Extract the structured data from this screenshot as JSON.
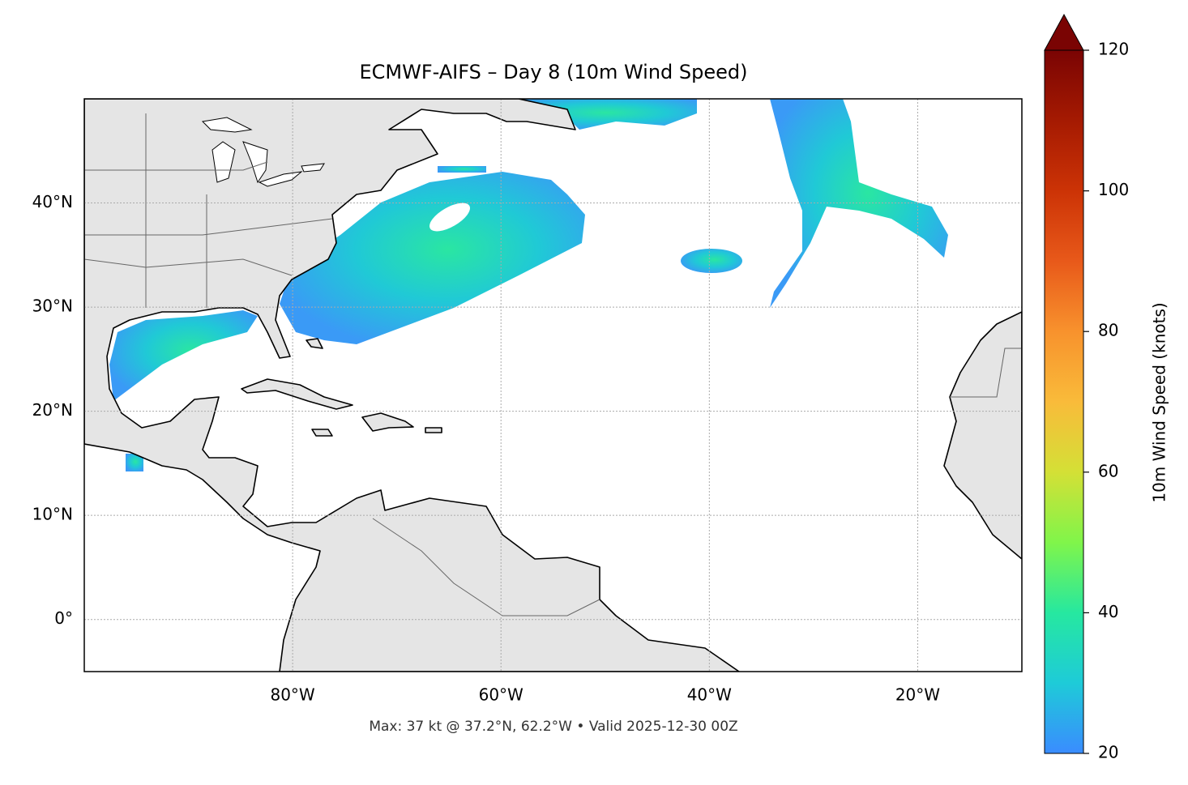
{
  "chart_data": {
    "type": "map",
    "title": "ECMWF-AIFS – Day 8 (10m Wind Speed)",
    "footer": "Max: 37 kt @ 37.2°N, 62.2°W • Valid 2025-12-30 00Z",
    "xlim": [
      -100,
      -10
    ],
    "ylim": [
      -5,
      50
    ],
    "xticks": [
      {
        "value": -80,
        "label": "80°W"
      },
      {
        "value": -60,
        "label": "60°W"
      },
      {
        "value": -40,
        "label": "40°W"
      },
      {
        "value": -20,
        "label": "20°W"
      }
    ],
    "yticks": [
      {
        "value": 0,
        "label": "0°"
      },
      {
        "value": 10,
        "label": "10°N"
      },
      {
        "value": 20,
        "label": "20°N"
      },
      {
        "value": 30,
        "label": "30°N"
      },
      {
        "value": 40,
        "label": "40°N"
      }
    ],
    "grid": true,
    "colorbar": {
      "label": "10m Wind Speed (knots)",
      "lim": [
        20,
        120
      ],
      "ticks": [
        20,
        40,
        60,
        80,
        100,
        120
      ]
    }
  }
}
